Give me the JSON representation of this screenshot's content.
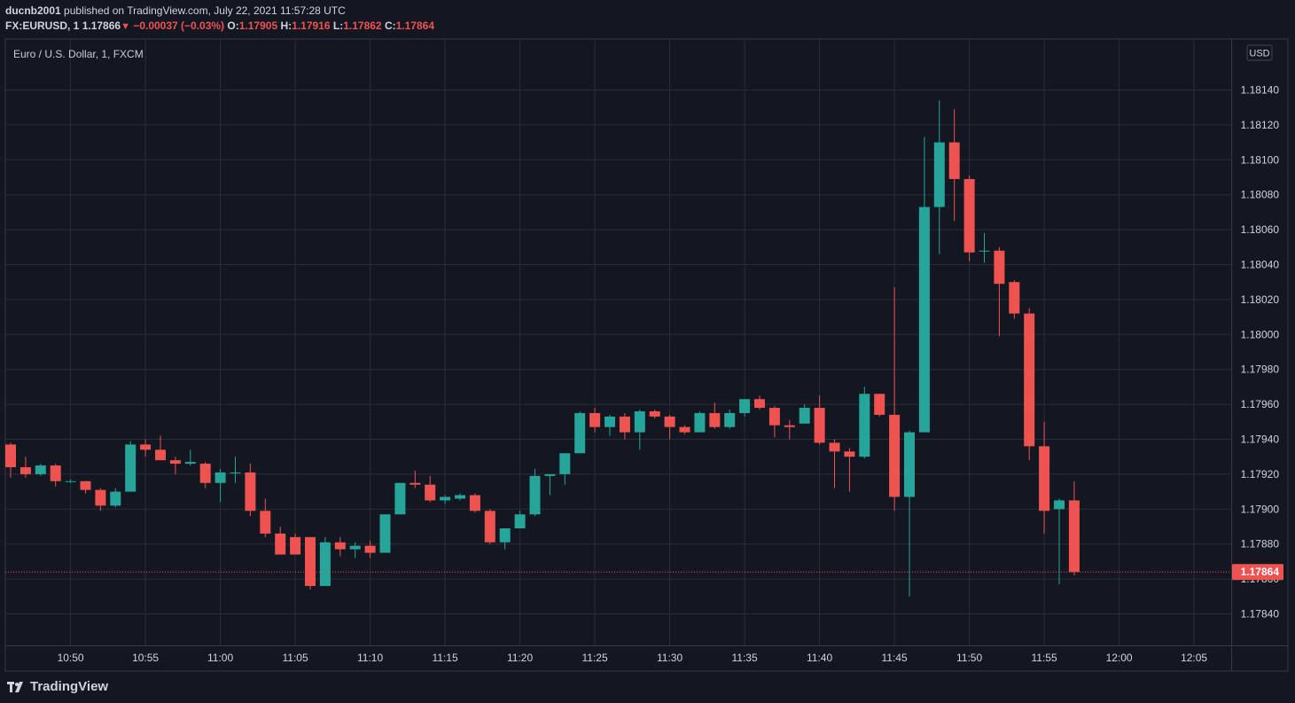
{
  "header": {
    "user": "ducnb2001",
    "published": "published on TradingView.com, July 22, 2021 11:57:28 UTC",
    "symbol": "FX:EURUSD, 1",
    "last": "1.17866",
    "change": "−0.00037 (−0.03%)",
    "o_label": "O:",
    "o_value": "1.17905",
    "h_label": "H:",
    "h_value": "1.17916",
    "l_label": "L:",
    "l_value": "1.17862",
    "c_label": "C:",
    "c_value": "1.17864"
  },
  "footer": {
    "brand": "TradingView"
  },
  "colors": {
    "up": "#26a69a",
    "down": "#ef5350",
    "bg": "#131722",
    "grid": "#2a2e39"
  },
  "chart_data": {
    "type": "candlestick",
    "title": "Euro / U.S. Dollar, 1, FXCM",
    "currency_label": "USD",
    "ylim": [
      1.17822,
      1.1816
    ],
    "yticks": [
      "1.17840",
      "1.17860",
      "1.17880",
      "1.17900",
      "1.17920",
      "1.17940",
      "1.17960",
      "1.17980",
      "1.18000",
      "1.18020",
      "1.18040",
      "1.18060",
      "1.18080",
      "1.18100",
      "1.18120",
      "1.18140"
    ],
    "xticks": [
      {
        "label": "10:50",
        "index": 4
      },
      {
        "label": "10:55",
        "index": 9
      },
      {
        "label": "11:00",
        "index": 14
      },
      {
        "label": "11:05",
        "index": 19
      },
      {
        "label": "11:10",
        "index": 24
      },
      {
        "label": "11:15",
        "index": 29
      },
      {
        "label": "11:20",
        "index": 34
      },
      {
        "label": "11:25",
        "index": 39
      },
      {
        "label": "11:30",
        "index": 44
      },
      {
        "label": "11:35",
        "index": 49
      },
      {
        "label": "11:40",
        "index": 54
      },
      {
        "label": "11:45",
        "index": 59
      },
      {
        "label": "11:50",
        "index": 64
      },
      {
        "label": "11:55",
        "index": 69
      },
      {
        "label": "12:00",
        "index": 74
      },
      {
        "label": "12:05",
        "index": 79
      }
    ],
    "last_price": "1.17864",
    "candles": [
      {
        "o": 1.17937,
        "h": 1.17938,
        "l": 1.17918,
        "c": 1.17924
      },
      {
        "o": 1.17924,
        "h": 1.1793,
        "l": 1.17918,
        "c": 1.1792
      },
      {
        "o": 1.1792,
        "h": 1.17926,
        "l": 1.17919,
        "c": 1.17925
      },
      {
        "o": 1.17925,
        "h": 1.17926,
        "l": 1.17913,
        "c": 1.17916
      },
      {
        "o": 1.17916,
        "h": 1.17917,
        "l": 1.17915,
        "c": 1.17916
      },
      {
        "o": 1.17916,
        "h": 1.17916,
        "l": 1.17909,
        "c": 1.17911
      },
      {
        "o": 1.17911,
        "h": 1.17912,
        "l": 1.17899,
        "c": 1.17902
      },
      {
        "o": 1.17902,
        "h": 1.17912,
        "l": 1.17901,
        "c": 1.1791
      },
      {
        "o": 1.1791,
        "h": 1.17939,
        "l": 1.1791,
        "c": 1.17937
      },
      {
        "o": 1.17937,
        "h": 1.1794,
        "l": 1.1793,
        "c": 1.17934
      },
      {
        "o": 1.17934,
        "h": 1.17942,
        "l": 1.17928,
        "c": 1.17928
      },
      {
        "o": 1.17928,
        "h": 1.1793,
        "l": 1.1792,
        "c": 1.17926
      },
      {
        "o": 1.17926,
        "h": 1.17934,
        "l": 1.17925,
        "c": 1.17927
      },
      {
        "o": 1.17926,
        "h": 1.17927,
        "l": 1.17912,
        "c": 1.17915
      },
      {
        "o": 1.17915,
        "h": 1.17923,
        "l": 1.17904,
        "c": 1.17921
      },
      {
        "o": 1.17921,
        "h": 1.1793,
        "l": 1.17915,
        "c": 1.17921
      },
      {
        "o": 1.17921,
        "h": 1.17926,
        "l": 1.17896,
        "c": 1.17899
      },
      {
        "o": 1.17899,
        "h": 1.17906,
        "l": 1.17884,
        "c": 1.17886
      },
      {
        "o": 1.17886,
        "h": 1.1789,
        "l": 1.17874,
        "c": 1.17874
      },
      {
        "o": 1.17884,
        "h": 1.17886,
        "l": 1.17874,
        "c": 1.17874
      },
      {
        "o": 1.17884,
        "h": 1.17884,
        "l": 1.17854,
        "c": 1.17856
      },
      {
        "o": 1.17856,
        "h": 1.17884,
        "l": 1.17856,
        "c": 1.17881
      },
      {
        "o": 1.17881,
        "h": 1.17884,
        "l": 1.17873,
        "c": 1.17877
      },
      {
        "o": 1.17877,
        "h": 1.17881,
        "l": 1.17872,
        "c": 1.17879
      },
      {
        "o": 1.17879,
        "h": 1.17882,
        "l": 1.17872,
        "c": 1.17875
      },
      {
        "o": 1.17875,
        "h": 1.17897,
        "l": 1.17875,
        "c": 1.17897
      },
      {
        "o": 1.17897,
        "h": 1.17915,
        "l": 1.17897,
        "c": 1.17915
      },
      {
        "o": 1.17915,
        "h": 1.17922,
        "l": 1.17912,
        "c": 1.17914
      },
      {
        "o": 1.17914,
        "h": 1.17919,
        "l": 1.17904,
        "c": 1.17905
      },
      {
        "o": 1.17905,
        "h": 1.17908,
        "l": 1.17903,
        "c": 1.17907
      },
      {
        "o": 1.17906,
        "h": 1.17909,
        "l": 1.17905,
        "c": 1.17908
      },
      {
        "o": 1.17908,
        "h": 1.17909,
        "l": 1.17898,
        "c": 1.17899
      },
      {
        "o": 1.17899,
        "h": 1.179,
        "l": 1.1788,
        "c": 1.17881
      },
      {
        "o": 1.17881,
        "h": 1.17889,
        "l": 1.17877,
        "c": 1.17889
      },
      {
        "o": 1.17889,
        "h": 1.17899,
        "l": 1.17889,
        "c": 1.17897
      },
      {
        "o": 1.17897,
        "h": 1.17923,
        "l": 1.17896,
        "c": 1.17919
      },
      {
        "o": 1.17919,
        "h": 1.1792,
        "l": 1.17908,
        "c": 1.1792
      },
      {
        "o": 1.1792,
        "h": 1.17932,
        "l": 1.17914,
        "c": 1.17932
      },
      {
        "o": 1.17932,
        "h": 1.17956,
        "l": 1.17932,
        "c": 1.17955
      },
      {
        "o": 1.17955,
        "h": 1.17958,
        "l": 1.17944,
        "c": 1.17947
      },
      {
        "o": 1.17947,
        "h": 1.17954,
        "l": 1.17942,
        "c": 1.17953
      },
      {
        "o": 1.17953,
        "h": 1.17955,
        "l": 1.1794,
        "c": 1.17944
      },
      {
        "o": 1.17944,
        "h": 1.17957,
        "l": 1.17934,
        "c": 1.17956
      },
      {
        "o": 1.17956,
        "h": 1.17957,
        "l": 1.17952,
        "c": 1.17953
      },
      {
        "o": 1.17953,
        "h": 1.17954,
        "l": 1.1794,
        "c": 1.17947
      },
      {
        "o": 1.17947,
        "h": 1.17948,
        "l": 1.17943,
        "c": 1.17944
      },
      {
        "o": 1.17944,
        "h": 1.17956,
        "l": 1.17944,
        "c": 1.17955
      },
      {
        "o": 1.17955,
        "h": 1.17961,
        "l": 1.17946,
        "c": 1.17947
      },
      {
        "o": 1.17947,
        "h": 1.17957,
        "l": 1.17946,
        "c": 1.17955
      },
      {
        "o": 1.17955,
        "h": 1.17962,
        "l": 1.17953,
        "c": 1.17963
      },
      {
        "o": 1.17963,
        "h": 1.17965,
        "l": 1.17957,
        "c": 1.17958
      },
      {
        "o": 1.17958,
        "h": 1.17959,
        "l": 1.17941,
        "c": 1.17948
      },
      {
        "o": 1.17948,
        "h": 1.17951,
        "l": 1.1794,
        "c": 1.17947
      },
      {
        "o": 1.17949,
        "h": 1.1796,
        "l": 1.17949,
        "c": 1.17958
      },
      {
        "o": 1.17958,
        "h": 1.17965,
        "l": 1.17937,
        "c": 1.17938
      },
      {
        "o": 1.17938,
        "h": 1.1794,
        "l": 1.17912,
        "c": 1.17933
      },
      {
        "o": 1.17933,
        "h": 1.17935,
        "l": 1.1791,
        "c": 1.1793
      },
      {
        "o": 1.1793,
        "h": 1.1797,
        "l": 1.17929,
        "c": 1.17966
      },
      {
        "o": 1.17966,
        "h": 1.17966,
        "l": 1.17953,
        "c": 1.17954
      },
      {
        "o": 1.17954,
        "h": 1.18027,
        "l": 1.17899,
        "c": 1.17907
      },
      {
        "o": 1.17907,
        "h": 1.17945,
        "l": 1.1785,
        "c": 1.17944
      },
      {
        "o": 1.17944,
        "h": 1.18113,
        "l": 1.17944,
        "c": 1.18073
      },
      {
        "o": 1.18073,
        "h": 1.18134,
        "l": 1.18046,
        "c": 1.1811
      },
      {
        "o": 1.1811,
        "h": 1.18129,
        "l": 1.18065,
        "c": 1.18089
      },
      {
        "o": 1.18089,
        "h": 1.18091,
        "l": 1.18042,
        "c": 1.18047
      },
      {
        "o": 1.18048,
        "h": 1.18058,
        "l": 1.18041,
        "c": 1.18048
      },
      {
        "o": 1.18048,
        "h": 1.1805,
        "l": 1.17999,
        "c": 1.18029
      },
      {
        "o": 1.1803,
        "h": 1.18031,
        "l": 1.18009,
        "c": 1.18012
      },
      {
        "o": 1.18012,
        "h": 1.18015,
        "l": 1.17928,
        "c": 1.17936
      },
      {
        "o": 1.17936,
        "h": 1.1795,
        "l": 1.17886,
        "c": 1.17899
      },
      {
        "o": 1.179,
        "h": 1.17906,
        "l": 1.17857,
        "c": 1.17905
      },
      {
        "o": 1.17905,
        "h": 1.17916,
        "l": 1.17862,
        "c": 1.17864
      }
    ]
  }
}
